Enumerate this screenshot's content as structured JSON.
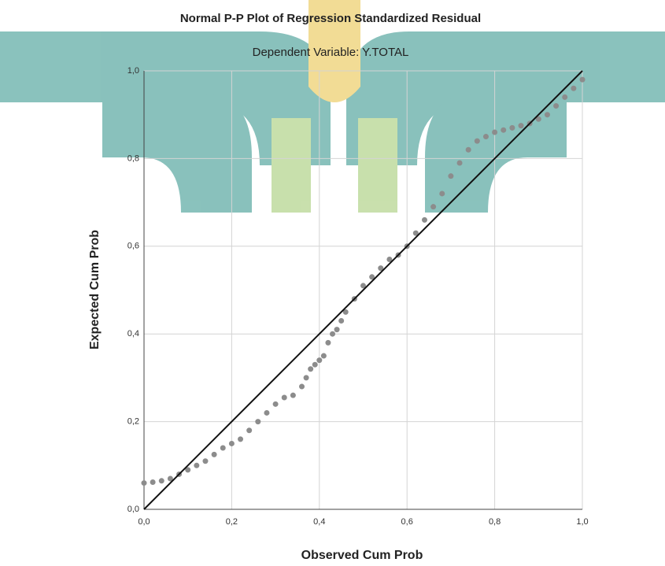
{
  "chart_data": {
    "type": "scatter",
    "title": "Normal P-P Plot of Regression Standardized Residual",
    "subtitle": "Dependent Variable: Y.TOTAL",
    "x_label": "Observed Cum Prob",
    "y_label": "Expected Cum Prob",
    "xlim": [
      0,
      1
    ],
    "ylim": [
      0,
      1
    ],
    "xticks": [
      {
        "value": 0,
        "label": "0,0"
      },
      {
        "value": 0.2,
        "label": "0,2"
      },
      {
        "value": 0.4,
        "label": "0,4"
      },
      {
        "value": 0.6,
        "label": "0,6"
      },
      {
        "value": 0.8,
        "label": "0,8"
      },
      {
        "value": 1,
        "label": "1,0"
      }
    ],
    "yticks": [
      {
        "value": 0,
        "label": "0,0"
      },
      {
        "value": 0.2,
        "label": "0,2"
      },
      {
        "value": 0.4,
        "label": "0,4"
      },
      {
        "value": 0.6,
        "label": "0,6"
      },
      {
        "value": 0.8,
        "label": "0,8"
      },
      {
        "value": 1,
        "label": "1,0"
      }
    ],
    "grid": true,
    "reference_line": true,
    "reference_line_color": "#111111",
    "color": "#8c8c8c",
    "x": [
      0,
      0.02,
      0.04,
      0.06,
      0.08,
      0.1,
      0.12,
      0.14,
      0.16,
      0.18,
      0.2,
      0.22,
      0.24,
      0.26,
      0.28,
      0.3,
      0.32,
      0.34,
      0.36,
      0.37,
      0.38,
      0.39,
      0.4,
      0.41,
      0.42,
      0.43,
      0.44,
      0.45,
      0.46,
      0.48,
      0.5,
      0.52,
      0.54,
      0.56,
      0.58,
      0.6,
      0.62,
      0.64,
      0.66,
      0.68,
      0.7,
      0.72,
      0.74,
      0.76,
      0.78,
      0.8,
      0.82,
      0.84,
      0.86,
      0.88,
      0.9,
      0.92,
      0.94,
      0.96,
      0.98,
      1.0
    ],
    "values": [
      0.06,
      0.062,
      0.065,
      0.07,
      0.08,
      0.09,
      0.1,
      0.11,
      0.125,
      0.14,
      0.15,
      0.16,
      0.18,
      0.2,
      0.22,
      0.24,
      0.255,
      0.26,
      0.28,
      0.3,
      0.32,
      0.33,
      0.34,
      0.35,
      0.38,
      0.4,
      0.41,
      0.43,
      0.45,
      0.48,
      0.51,
      0.53,
      0.55,
      0.57,
      0.58,
      0.6,
      0.63,
      0.66,
      0.69,
      0.72,
      0.76,
      0.79,
      0.82,
      0.84,
      0.85,
      0.86,
      0.865,
      0.87,
      0.875,
      0.88,
      0.89,
      0.9,
      0.92,
      0.94,
      0.96,
      0.98
    ]
  }
}
